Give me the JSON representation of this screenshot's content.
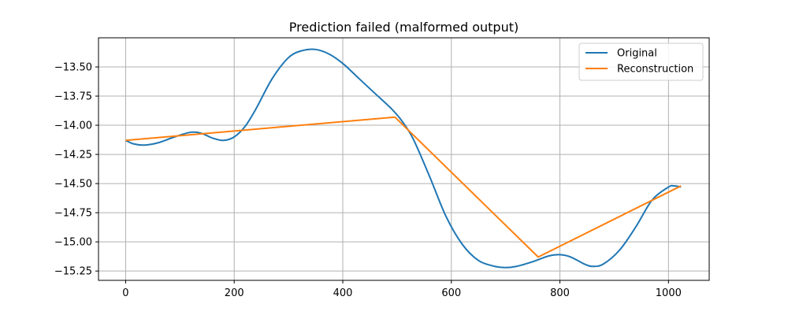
{
  "chart_data": {
    "type": "line",
    "title": "Prediction failed (malformed output)",
    "xlabel": "",
    "ylabel": "",
    "xlim": [
      -50,
      1075
    ],
    "ylim": [
      -15.33,
      -13.25
    ],
    "xticks": [
      0,
      200,
      400,
      600,
      800,
      1000
    ],
    "yticks": [
      -15.25,
      -15.0,
      -14.75,
      -14.5,
      -14.25,
      -14.0,
      -13.75,
      -13.5
    ],
    "ytick_labels": [
      "−15.25",
      "−15.00",
      "−14.75",
      "−14.50",
      "−14.25",
      "−14.00",
      "−13.75",
      "−13.50"
    ],
    "xtick_labels": [
      "0",
      "200",
      "400",
      "600",
      "800",
      "1000"
    ],
    "grid": true,
    "legend_position": "top-right",
    "series": [
      {
        "name": "Original",
        "color": "#1f77b4",
        "x": [
          0,
          15,
          35,
          60,
          90,
          120,
          140,
          160,
          180,
          200,
          220,
          240,
          270,
          300,
          325,
          350,
          375,
          400,
          430,
          460,
          490,
          510,
          530,
          560,
          590,
          620,
          650,
          680,
          700,
          720,
          750,
          780,
          800,
          820,
          845,
          860,
          880,
          910,
          940,
          970,
          1000,
          1010,
          1023
        ],
        "y": [
          -14.13,
          -14.16,
          -14.17,
          -14.15,
          -14.1,
          -14.06,
          -14.07,
          -14.11,
          -14.13,
          -14.1,
          -14.01,
          -13.86,
          -13.6,
          -13.42,
          -13.36,
          -13.35,
          -13.39,
          -13.47,
          -13.6,
          -13.73,
          -13.86,
          -13.97,
          -14.12,
          -14.44,
          -14.78,
          -15.02,
          -15.16,
          -15.21,
          -15.22,
          -15.21,
          -15.17,
          -15.12,
          -15.11,
          -15.13,
          -15.19,
          -15.21,
          -15.19,
          -15.07,
          -14.87,
          -14.64,
          -14.53,
          -14.52,
          -14.53
        ]
      },
      {
        "name": "Reconstruction",
        "color": "#ff7f0e",
        "x": [
          0,
          496,
          760,
          1023
        ],
        "y": [
          -14.13,
          -13.93,
          -15.13,
          -14.52
        ]
      }
    ]
  }
}
